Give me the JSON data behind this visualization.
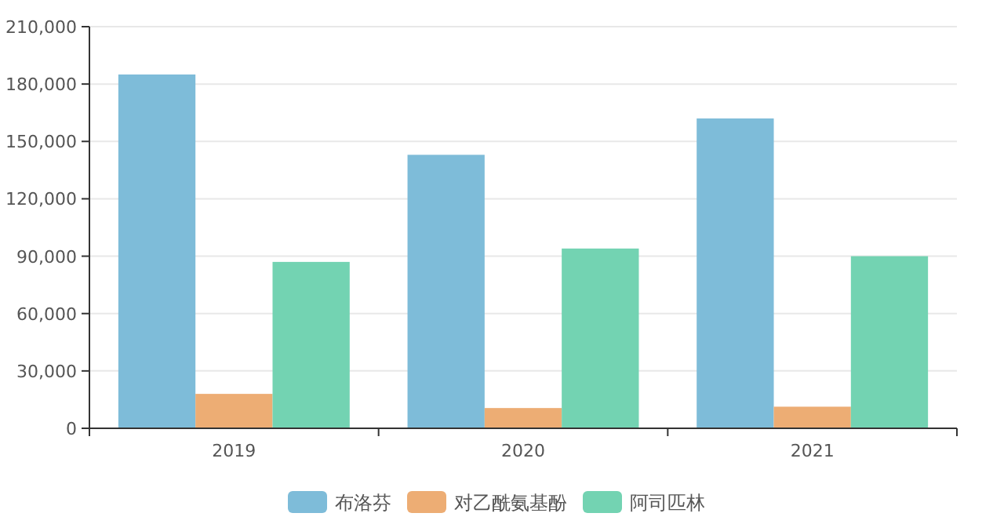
{
  "chart_data": {
    "type": "bar",
    "categories": [
      "2019",
      "2020",
      "2021"
    ],
    "series": [
      {
        "name": "布洛芬",
        "color": "#7ebcd9",
        "values": [
          185000,
          143000,
          162000
        ]
      },
      {
        "name": "对乙酰氨基酚",
        "color": "#edad74",
        "values": [
          18000,
          10600,
          11300
        ]
      },
      {
        "name": "阿司匹林",
        "color": "#73d3b2",
        "values": [
          87000,
          94000,
          90000
        ]
      }
    ],
    "ylim": [
      0,
      210000
    ],
    "yticks": [
      {
        "value": 0,
        "label": "0"
      },
      {
        "value": 30000,
        "label": "30,000"
      },
      {
        "value": 60000,
        "label": "60,000"
      },
      {
        "value": 90000,
        "label": "90,000"
      },
      {
        "value": 120000,
        "label": "120,000"
      },
      {
        "value": 150000,
        "label": "150,000"
      },
      {
        "value": 180000,
        "label": "180,000"
      },
      {
        "value": 210000,
        "label": "210,000"
      }
    ],
    "grid": "y",
    "legend": "bottom"
  }
}
